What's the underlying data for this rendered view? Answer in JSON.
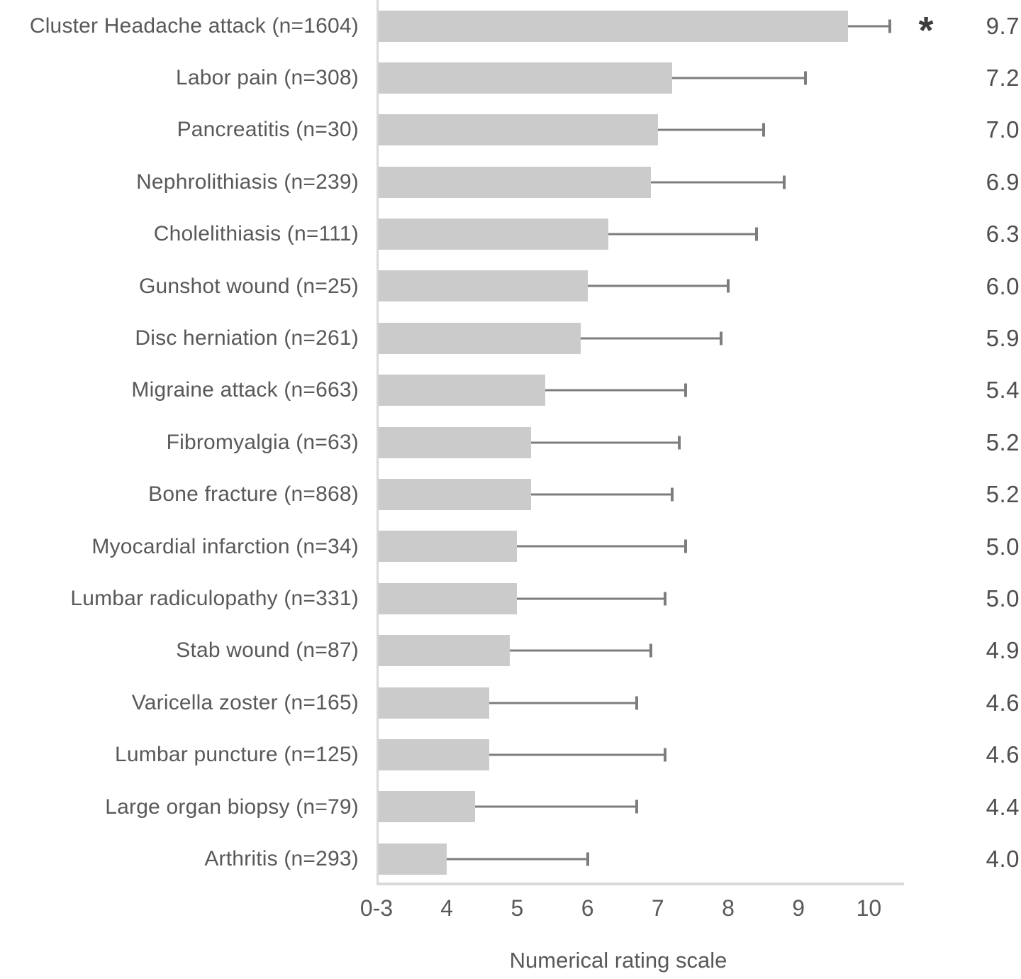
{
  "colors": {
    "background": "#ffffff",
    "bar_fill": "#cbcbcb",
    "error_bar": "#7d7d7d",
    "axis_line": "#d9d9d9",
    "label_text": "#595959",
    "value_text": "#4f4f4f",
    "marker_text": "#3d3d3d"
  },
  "chart_data": {
    "type": "bar",
    "orientation": "horizontal",
    "xlabel": "Numerical rating scale",
    "significance_marker": "*",
    "x_axis": {
      "origin_value": 3,
      "right_edge_value": 10.5,
      "axis_break_note": "first tick labeled 0-3 (values 0-3 compressed at axis origin)",
      "ticks": [
        {
          "label": "0-3",
          "value": 3
        },
        {
          "label": "4",
          "value": 4
        },
        {
          "label": "5",
          "value": 5
        },
        {
          "label": "6",
          "value": 6
        },
        {
          "label": "7",
          "value": 7
        },
        {
          "label": "8",
          "value": 8
        },
        {
          "label": "9",
          "value": 9
        },
        {
          "label": "10",
          "value": 10
        }
      ]
    },
    "rows": [
      {
        "label": "Cluster Headache attack (n=1604)",
        "value": 9.7,
        "display_value": "9.7",
        "error_upper": 10.3,
        "significant": true
      },
      {
        "label": "Labor pain (n=308)",
        "value": 7.2,
        "display_value": "7.2",
        "error_upper": 9.1,
        "significant": false
      },
      {
        "label": "Pancreatitis (n=30)",
        "value": 7.0,
        "display_value": "7.0",
        "error_upper": 8.5,
        "significant": false
      },
      {
        "label": "Nephrolithiasis (n=239)",
        "value": 6.9,
        "display_value": "6.9",
        "error_upper": 8.8,
        "significant": false
      },
      {
        "label": "Cholelithiasis (n=111)",
        "value": 6.3,
        "display_value": "6.3",
        "error_upper": 8.4,
        "significant": false
      },
      {
        "label": "Gunshot wound (n=25)",
        "value": 6.0,
        "display_value": "6.0",
        "error_upper": 8.0,
        "significant": false
      },
      {
        "label": "Disc herniation (n=261)",
        "value": 5.9,
        "display_value": "5.9",
        "error_upper": 7.9,
        "significant": false
      },
      {
        "label": "Migraine attack (n=663)",
        "value": 5.4,
        "display_value": "5.4",
        "error_upper": 7.4,
        "significant": false
      },
      {
        "label": "Fibromyalgia (n=63)",
        "value": 5.2,
        "display_value": "5.2",
        "error_upper": 7.3,
        "significant": false
      },
      {
        "label": "Bone fracture (n=868)",
        "value": 5.2,
        "display_value": "5.2",
        "error_upper": 7.2,
        "significant": false
      },
      {
        "label": "Myocardial infarction (n=34)",
        "value": 5.0,
        "display_value": "5.0",
        "error_upper": 7.4,
        "significant": false
      },
      {
        "label": "Lumbar radiculopathy (n=331)",
        "value": 5.0,
        "display_value": "5.0",
        "error_upper": 7.1,
        "significant": false
      },
      {
        "label": "Stab wound (n=87)",
        "value": 4.9,
        "display_value": "4.9",
        "error_upper": 6.9,
        "significant": false
      },
      {
        "label": "Varicella zoster (n=165)",
        "value": 4.6,
        "display_value": "4.6",
        "error_upper": 6.7,
        "significant": false
      },
      {
        "label": "Lumbar puncture (n=125)",
        "value": 4.6,
        "display_value": "4.6",
        "error_upper": 7.1,
        "significant": false
      },
      {
        "label": "Large organ biopsy (n=79)",
        "value": 4.4,
        "display_value": "4.4",
        "error_upper": 6.7,
        "significant": false
      },
      {
        "label": "Arthritis (n=293)",
        "value": 4.0,
        "display_value": "4.0",
        "error_upper": 6.0,
        "significant": false
      }
    ]
  }
}
